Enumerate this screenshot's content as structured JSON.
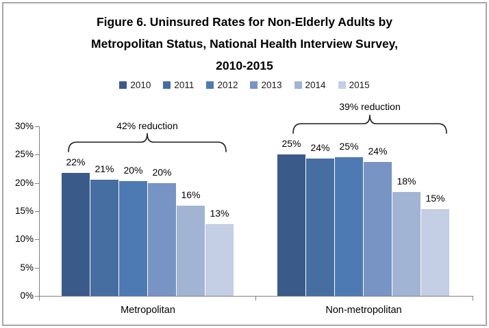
{
  "figure": {
    "border_color": "#a6a6a6",
    "background": "#ffffff"
  },
  "chart_data": {
    "type": "bar",
    "title": "Figure 6. Uninsured Rates for Non-Elderly Adults by Metropolitan Status, National Health Interview Survey, 2010-2015",
    "title_lines": [
      "Figure 6. Uninsured Rates for Non-Elderly Adults by",
      "Metropolitan Status, National Health Interview Survey,",
      "2010-2015"
    ],
    "categories": [
      "Metropolitan",
      "Non-metropolitan"
    ],
    "series": [
      {
        "name": "2010",
        "color": "#3a5a8a",
        "values": [
          21.8,
          25.0
        ],
        "labels": [
          "22%",
          "25%"
        ]
      },
      {
        "name": "2011",
        "color": "#466ea0",
        "values": [
          20.6,
          24.3
        ],
        "labels": [
          "21%",
          "24%"
        ]
      },
      {
        "name": "2012",
        "color": "#4e7ab4",
        "values": [
          20.3,
          24.6
        ],
        "labels": [
          "20%",
          "25%"
        ]
      },
      {
        "name": "2013",
        "color": "#7894c4",
        "values": [
          19.9,
          23.7
        ],
        "labels": [
          "20%",
          "24%"
        ]
      },
      {
        "name": "2014",
        "color": "#a2b4d4",
        "values": [
          16.0,
          18.4
        ],
        "labels": [
          "16%",
          "18%"
        ]
      },
      {
        "name": "2015",
        "color": "#c4cee4",
        "values": [
          12.7,
          15.4
        ],
        "labels": [
          "13%",
          "15%"
        ]
      }
    ],
    "y_axis": {
      "min": 0,
      "max": 30,
      "tick_step": 5,
      "tick_labels": [
        "0%",
        "5%",
        "10%",
        "15%",
        "20%",
        "25%",
        "30%"
      ]
    },
    "annotations": [
      {
        "text": "42% reduction",
        "category": "Metropolitan"
      },
      {
        "text": "39% reduction",
        "category": "Non-metropolitan"
      }
    ],
    "legend_position": "top",
    "grid": false,
    "axis_color": "#808080"
  }
}
